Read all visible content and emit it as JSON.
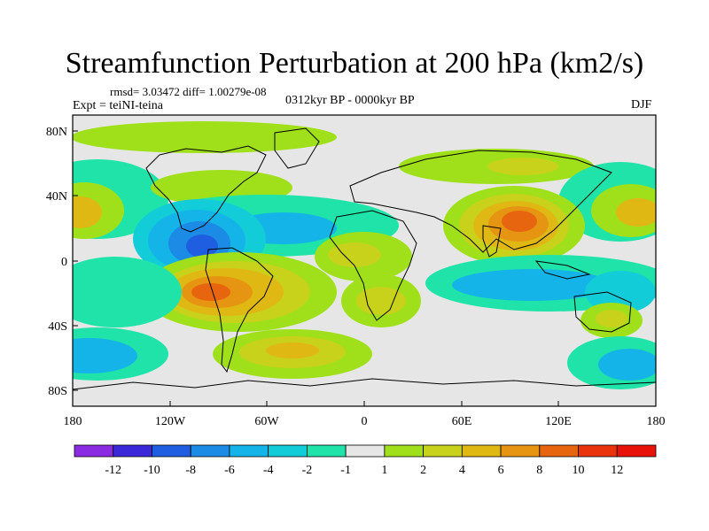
{
  "title": "Streamfunction Perturbation at 200 hPa (km2/s)",
  "stats_line": "rmsd= 3.03472 diff= 1.00279e-08",
  "experiment_line": "Expt = teiNI-teina",
  "period_line": "0312kyr BP - 0000kyr BP",
  "season": "DJF",
  "colors": {
    "background_band": "#e6e6e6",
    "coast": "#000000"
  },
  "axes": {
    "lat_ticks": [
      "80N",
      "40N",
      "0",
      "40S",
      "80S"
    ],
    "lon_ticks": [
      "180",
      "120W",
      "60W",
      "0",
      "60E",
      "120E",
      "180"
    ]
  },
  "colorbar": {
    "labels": [
      "-12",
      "-10",
      "-8",
      "-6",
      "-4",
      "-2",
      "-1",
      "1",
      "2",
      "4",
      "6",
      "8",
      "10",
      "12"
    ],
    "colors": [
      "#8a2be2",
      "#3b28d9",
      "#1f5ee0",
      "#1b8be6",
      "#14b4e8",
      "#12ccd8",
      "#1fe3a8",
      "#e6e6e6",
      "#9fe01a",
      "#c8d21a",
      "#e0b814",
      "#e59512",
      "#e8650f",
      "#e8330c",
      "#e81208"
    ]
  },
  "features": [
    {
      "name": "max-east-asia",
      "lon": 90,
      "lat": 25,
      "value": 11
    },
    {
      "name": "max-south-america",
      "lon": -100,
      "lat": -20,
      "value": 11
    },
    {
      "name": "min-central-america",
      "lon": -100,
      "lat": 15,
      "value": -10
    },
    {
      "name": "max-north-pacific-east",
      "lon": 170,
      "lat": 30,
      "value": 6
    },
    {
      "name": "max-north-pacific-west",
      "lon": -178,
      "lat": 30,
      "value": 6
    },
    {
      "name": "max-south-atlantic",
      "lon": -55,
      "lat": -55,
      "value": 4
    },
    {
      "name": "max-africa",
      "lon": -10,
      "lat": 10,
      "value": 4
    },
    {
      "name": "max-southern-africa",
      "lon": 10,
      "lat": -25,
      "value": 4
    },
    {
      "name": "max-australia",
      "lon": 150,
      "lat": -35,
      "value": 4
    },
    {
      "name": "min-south-pacific",
      "lon": -175,
      "lat": -55,
      "value": -6
    },
    {
      "name": "min-indian-ocean",
      "lon": 110,
      "lat": -15,
      "value": -4
    },
    {
      "name": "min-north-atlantic",
      "lon": -35,
      "lat": 30,
      "value": -4
    },
    {
      "name": "max-arctic",
      "lon": -80,
      "lat": 78,
      "value": 2
    }
  ]
}
